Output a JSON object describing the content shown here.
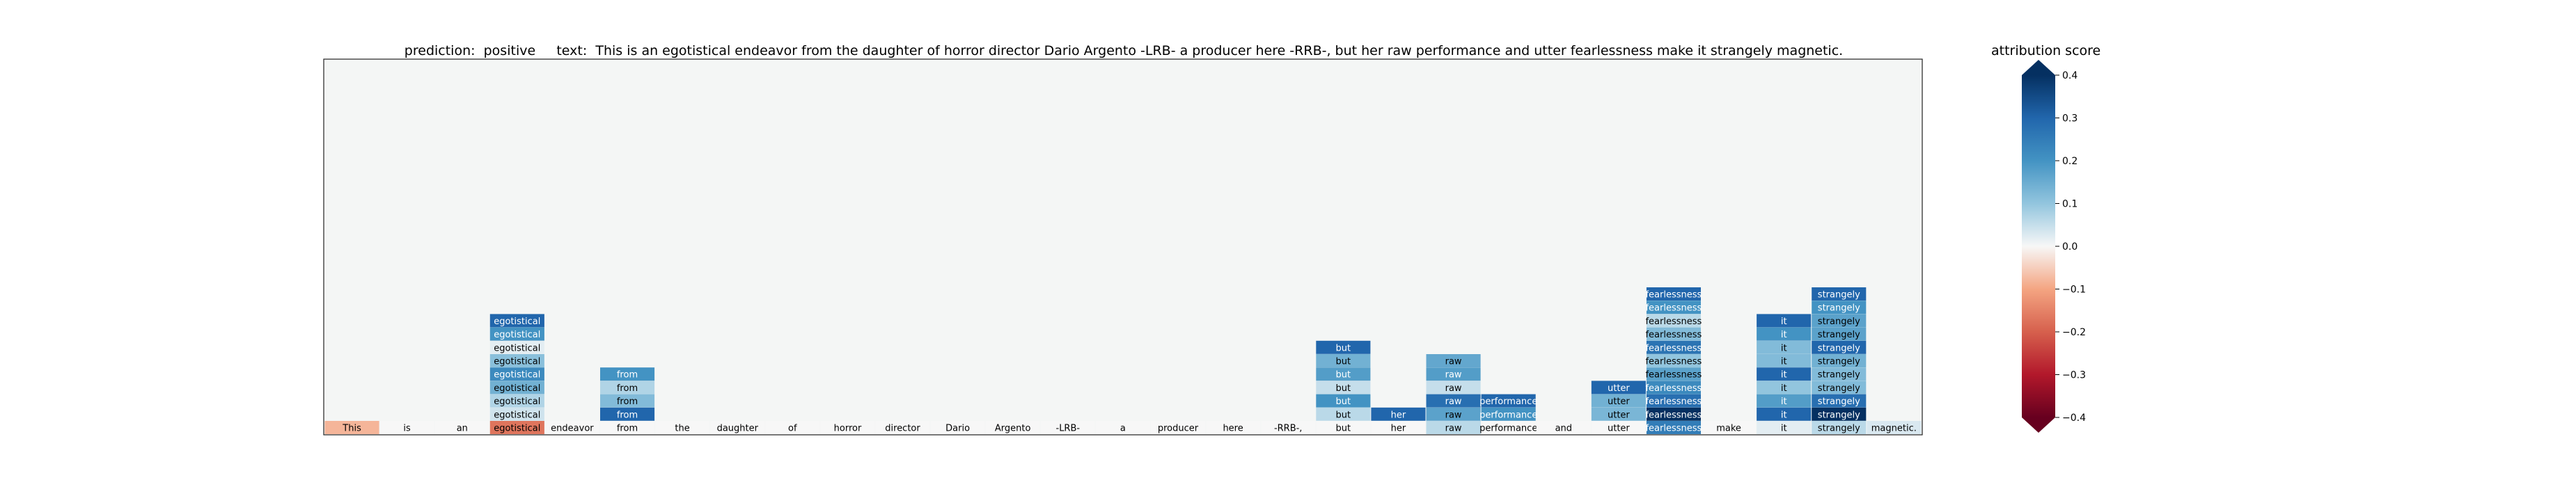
{
  "chart_data": {
    "type": "heatmap",
    "title": {
      "prediction_label": "prediction:",
      "prediction": "positive",
      "text_label": "text:",
      "text": "This is an egotistical endeavor from the daughter of horror director Dario Argento -LRB- a producer here -RRB-, but her raw performance and utter fearlessness make it strangely magnetic."
    },
    "tokens": [
      "This",
      "is",
      "an",
      "egotistical",
      "endeavor",
      "from",
      "the",
      "daughter",
      "of",
      "horror",
      "director",
      "Dario",
      "Argento",
      "-LRB-",
      "a",
      "producer",
      "here",
      "-RRB-,",
      "but",
      "her",
      "raw",
      "performance",
      "and",
      "utter",
      "fearlessness",
      "make",
      "it",
      "strangely",
      "magnetic."
    ],
    "base_row_scores": [
      -0.08,
      0,
      0,
      -0.17,
      0,
      0,
      0,
      0,
      0,
      0,
      0,
      0,
      0,
      0,
      0,
      0,
      0,
      0,
      0,
      0,
      0.06,
      0,
      0,
      0,
      0.25,
      0,
      0.02,
      0.06,
      0.03
    ],
    "stacked_columns": [
      {
        "token": "egotistical",
        "scores": [
          0.04,
          0.07,
          0.14,
          0.22,
          0.11,
          0.02,
          0.2,
          0.3
        ]
      },
      {
        "token": "from",
        "scores": [
          0.3,
          0.12,
          0.07,
          0.2
        ]
      },
      {
        "token": "but",
        "scores": [
          0.06,
          0.2,
          0.05,
          0.18,
          0.14,
          0.3
        ]
      },
      {
        "token": "her",
        "scores": [
          0.3
        ]
      },
      {
        "token": "raw",
        "scores": [
          0.17,
          0.28,
          0.05,
          0.18,
          0.16
        ]
      },
      {
        "token": "performance",
        "scores": [
          0.2,
          0.3
        ]
      },
      {
        "token": "utter",
        "scores": [
          0.13,
          0.14,
          0.3
        ]
      },
      {
        "token": "fearlessness",
        "scores": [
          0.46,
          0.28,
          0.22,
          0.17,
          0.1,
          0.27,
          0.12,
          0.06,
          0.2,
          0.3
        ]
      },
      {
        "token": "it",
        "scores": [
          0.3,
          0.18,
          0.1,
          0.3,
          0.12,
          0.12,
          0.2,
          0.3
        ]
      },
      {
        "token": "strangely",
        "scores": [
          0.46,
          0.28,
          0.12,
          0.12,
          0.14,
          0.3,
          0.17,
          0.17,
          0.2,
          0.3
        ]
      }
    ],
    "colorbar": {
      "label": "attribution score",
      "vmin": -0.4,
      "vmax": 0.4,
      "ticks": [
        0.4,
        0.3,
        0.2,
        0.1,
        0.0,
        -0.1,
        -0.2,
        -0.3,
        -0.4
      ],
      "tick_labels": [
        "0.4",
        "0.3",
        "0.2",
        "0.1",
        "0.0",
        "−0.1",
        "−0.2",
        "−0.3",
        "−0.4"
      ],
      "colormap": "RdBu",
      "extend": "both"
    },
    "plot_background": "#f4f6f5"
  }
}
